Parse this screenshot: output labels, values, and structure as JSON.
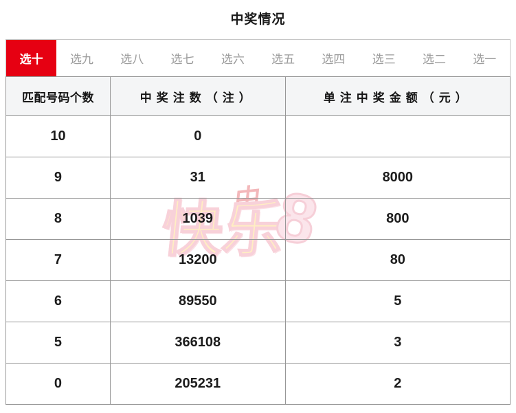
{
  "page": {
    "title": "中奖情况"
  },
  "tabs": {
    "active_index": 0,
    "active_bg_color": "#e60012",
    "active_text_color": "#ffffff",
    "inactive_text_color": "#9b9b9b",
    "items": [
      {
        "label": "选十",
        "active": true
      },
      {
        "label": "选九",
        "active": false
      },
      {
        "label": "选八",
        "active": false
      },
      {
        "label": "选七",
        "active": false
      },
      {
        "label": "选六",
        "active": false
      },
      {
        "label": "选五",
        "active": false
      },
      {
        "label": "选四",
        "active": false
      },
      {
        "label": "选三",
        "active": false
      },
      {
        "label": "选二",
        "active": false
      },
      {
        "label": "选一",
        "active": false
      }
    ]
  },
  "table": {
    "headers": [
      "匹配号码个数",
      "中奖注数（注）",
      "单注中奖金额（元）"
    ],
    "header_bg_color": "#f4f5f6",
    "border_color": "#979797",
    "rows": [
      {
        "matched": "10",
        "bets": "0",
        "prize": ""
      },
      {
        "matched": "9",
        "bets": "31",
        "prize": "8000"
      },
      {
        "matched": "8",
        "bets": "1039",
        "prize": "800"
      },
      {
        "matched": "7",
        "bets": "13200",
        "prize": "80"
      },
      {
        "matched": "6",
        "bets": "89550",
        "prize": "5"
      },
      {
        "matched": "5",
        "bets": "366108",
        "prize": "3"
      },
      {
        "matched": "0",
        "bets": "205231",
        "prize": "2"
      }
    ]
  },
  "watermark": {
    "emblem_glyph": "中",
    "text_main": "快乐",
    "text_number": "8",
    "colors": {
      "yellow": "#ffd873",
      "pink_outline": "#ef93a5",
      "pink_fill": "#f6c3d0",
      "emblem_red": "#e4555c"
    }
  }
}
